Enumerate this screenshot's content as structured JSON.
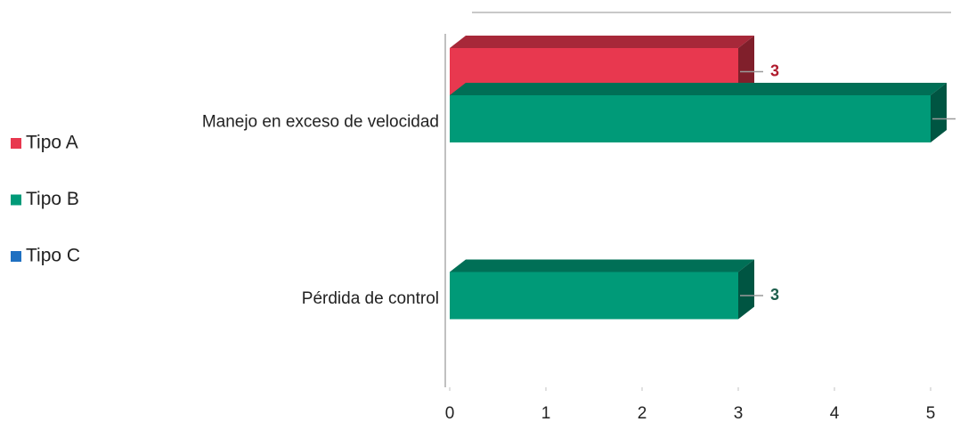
{
  "chart_data": {
    "type": "bar3d_horizontal",
    "categories": [
      "Manejo en exceso de velocidad",
      "Pérdida de control"
    ],
    "series": [
      {
        "name": "Tipo A",
        "color": "#e8384f",
        "label_color": "#b01c2e",
        "values": [
          3,
          null
        ]
      },
      {
        "name": "Tipo B",
        "color": "#009a78",
        "label_color": "#1d5e4c",
        "values": [
          5,
          3
        ]
      },
      {
        "name": "Tipo C",
        "color": "#1f70c1",
        "label_color": "#1f4e8c",
        "values": [
          null,
          null
        ]
      }
    ],
    "xlim": [
      0,
      5
    ],
    "xticks": [
      0,
      1,
      2,
      3,
      4,
      5
    ],
    "legend": "left"
  }
}
